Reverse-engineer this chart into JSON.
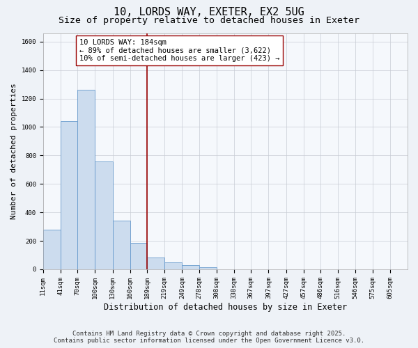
{
  "title": "10, LORDS WAY, EXETER, EX2 5UG",
  "subtitle": "Size of property relative to detached houses in Exeter",
  "xlabel": "Distribution of detached houses by size in Exeter",
  "ylabel": "Number of detached properties",
  "bar_left_edges": [
    11,
    41,
    70,
    100,
    130,
    160,
    189,
    219,
    249,
    278,
    308,
    338,
    367,
    397,
    427,
    457,
    486,
    516,
    546,
    575
  ],
  "bar_widths": [
    30,
    29,
    30,
    30,
    30,
    29,
    30,
    30,
    29,
    30,
    30,
    29,
    30,
    30,
    30,
    29,
    29,
    30,
    29,
    30
  ],
  "bar_heights": [
    280,
    1040,
    1260,
    760,
    340,
    185,
    85,
    50,
    30,
    15,
    0,
    0,
    0,
    0,
    0,
    0,
    0,
    0,
    0,
    0
  ],
  "tick_labels": [
    "11sqm",
    "41sqm",
    "70sqm",
    "100sqm",
    "130sqm",
    "160sqm",
    "189sqm",
    "219sqm",
    "249sqm",
    "278sqm",
    "308sqm",
    "338sqm",
    "367sqm",
    "397sqm",
    "427sqm",
    "457sqm",
    "486sqm",
    "516sqm",
    "546sqm",
    "575sqm",
    "605sqm"
  ],
  "tick_positions": [
    11,
    41,
    70,
    100,
    130,
    160,
    189,
    219,
    249,
    278,
    308,
    338,
    367,
    397,
    427,
    457,
    486,
    516,
    546,
    575,
    605
  ],
  "ylim": [
    0,
    1660
  ],
  "xlim": [
    11,
    635
  ],
  "bar_color": "#ccdcee",
  "bar_edge_color": "#6699cc",
  "vline_x": 189,
  "vline_color": "#990000",
  "annotation_line1": "10 LORDS WAY: 184sqm",
  "annotation_line2": "← 89% of detached houses are smaller (3,622)",
  "annotation_line3": "10% of semi-detached houses are larger (423) →",
  "annotation_box_color": "#ffffff",
  "annotation_box_edge": "#990000",
  "background_color": "#eef2f7",
  "plot_bg_color": "#f5f8fc",
  "footer1": "Contains HM Land Registry data © Crown copyright and database right 2025.",
  "footer2": "Contains public sector information licensed under the Open Government Licence v3.0.",
  "title_fontsize": 11,
  "subtitle_fontsize": 9.5,
  "ylabel_fontsize": 8,
  "xlabel_fontsize": 8.5,
  "tick_fontsize": 6.5,
  "footer_fontsize": 6.5,
  "annotation_fontsize": 7.5
}
